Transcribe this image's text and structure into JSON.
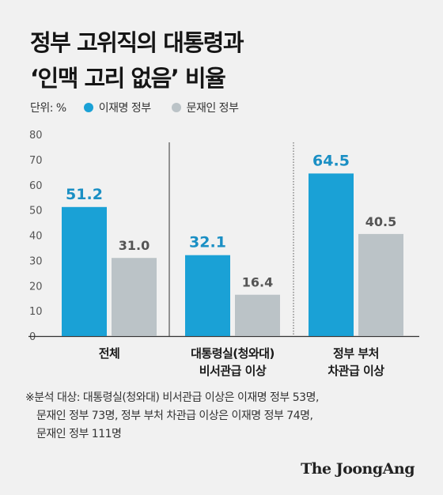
{
  "title": [
    "정부 고위직의 대통령과",
    "‘인맥 고리 없음’ 비율"
  ],
  "legend": {
    "unit": "단위: %",
    "series": [
      {
        "label": "이재명 정부",
        "color": "#1aa1d6"
      },
      {
        "label": "문재인 정부",
        "color": "#bbc3c7"
      }
    ]
  },
  "chart_data": {
    "type": "bar",
    "categories": [
      [
        "전체"
      ],
      [
        "대통령실(청와대)",
        "비서관급 이상"
      ],
      [
        "정부 부처",
        "차관급 이상"
      ]
    ],
    "series": [
      {
        "name": "이재명 정부",
        "values": [
          51.2,
          32.1,
          64.5
        ],
        "color": "#1aa1d6"
      },
      {
        "name": "문재인 정부",
        "values": [
          31.0,
          16.4,
          40.5
        ],
        "color": "#bbc3c7"
      }
    ],
    "ylim": [
      0,
      80
    ],
    "yticks": [
      0,
      10,
      20,
      30,
      40,
      50,
      60,
      70,
      80
    ],
    "grid": false,
    "legend": "top-left"
  },
  "footnote": [
    "※분석 대상: 대통령실(청와대) 비서관급 이상은 이재명 정부 53명,",
    "문재인 정부 73명, 정부 부처 차관급 이상은 이재명 정부 74명,",
    "문재인 정부 111명"
  ],
  "brand": "The JoongAng"
}
